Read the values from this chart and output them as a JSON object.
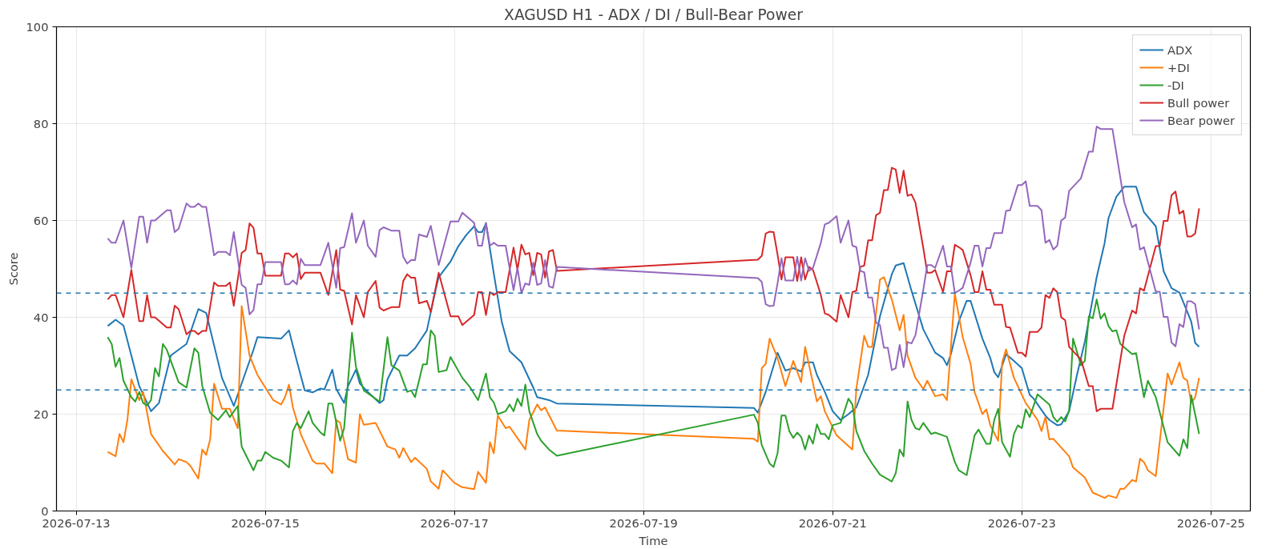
{
  "chart_data": {
    "type": "line",
    "title": "XAGUSD H1 - ADX / DI / Bull-Bear Power",
    "xlabel": "Time",
    "ylabel": "Score",
    "xlim": [
      "2026-07-12T19:00",
      "2026-07-25T10:00"
    ],
    "xticks": [
      "2026-07-13",
      "2026-07-15",
      "2026-07-17",
      "2026-07-19",
      "2026-07-21",
      "2026-07-23",
      "2026-07-25"
    ],
    "ylim": [
      0,
      100
    ],
    "yticks": [
      0,
      20,
      40,
      60,
      80,
      100
    ],
    "grid": true,
    "legend": "top right",
    "line_style": "solid",
    "ref_lines": [
      {
        "axis": "y",
        "value": 45,
        "color": "#1f77b4",
        "line_style": "dashed"
      },
      {
        "axis": "y",
        "value": 25,
        "color": "#1f77b4",
        "line_style": "dashed"
      }
    ],
    "x": [
      "2026-07-13T08:00",
      "2026-07-13T09:00",
      "2026-07-13T10:00",
      "2026-07-13T12:00",
      "2026-07-13T14:00",
      "2026-07-13T16:00",
      "2026-07-13T17:00",
      "2026-07-13T18:00",
      "2026-07-13T19:00",
      "2026-07-13T20:00",
      "2026-07-13T23:00",
      "2026-07-14T00:00",
      "2026-07-14T01:00",
      "2026-07-14T02:00",
      "2026-07-14T04:00",
      "2026-07-14T05:00",
      "2026-07-14T06:00",
      "2026-07-14T07:00",
      "2026-07-14T08:00",
      "2026-07-14T09:00",
      "2026-07-14T11:00",
      "2026-07-14T12:00",
      "2026-07-14T14:00",
      "2026-07-14T15:00",
      "2026-07-14T16:00",
      "2026-07-14T18:00",
      "2026-07-14T19:00",
      "2026-07-14T20:00",
      "2026-07-14T21:00",
      "2026-07-14T22:00",
      "2026-07-14T23:00",
      "2026-07-15T00:00",
      "2026-07-15T04:00",
      "2026-07-15T05:00",
      "2026-07-15T06:00",
      "2026-07-15T07:00",
      "2026-07-15T08:00",
      "2026-07-15T09:00",
      "2026-07-15T10:00",
      "2026-07-15T14:00",
      "2026-07-15T16:00",
      "2026-07-15T18:00",
      "2026-07-15T19:00",
      "2026-07-15T20:00",
      "2026-07-15T22:00",
      "2026-07-15T23:00",
      "2026-07-16T01:00",
      "2026-07-16T02:00",
      "2026-07-16T04:00",
      "2026-07-16T05:00",
      "2026-07-16T06:00",
      "2026-07-16T08:00",
      "2026-07-16T10:00",
      "2026-07-16T11:00",
      "2026-07-16T12:00",
      "2026-07-16T13:00",
      "2026-07-16T14:00",
      "2026-07-16T15:00",
      "2026-07-16T17:00",
      "2026-07-16T18:00",
      "2026-07-16T20:00",
      "2026-07-16T23:00",
      "2026-07-17T01:00",
      "2026-07-17T02:00",
      "2026-07-17T05:00",
      "2026-07-17T06:00",
      "2026-07-17T07:00",
      "2026-07-17T08:00",
      "2026-07-17T09:00",
      "2026-07-17T10:00",
      "2026-07-17T11:00",
      "2026-07-17T13:00",
      "2026-07-17T15:00",
      "2026-07-17T16:00",
      "2026-07-17T17:00",
      "2026-07-17T18:00",
      "2026-07-17T19:00",
      "2026-07-17T20:00",
      "2026-07-17T21:00",
      "2026-07-17T22:00",
      "2026-07-17T23:00",
      "2026-07-18T00:00",
      "2026-07-18T01:00",
      "2026-07-18T02:00",
      "2026-07-20T05:00",
      "2026-07-20T06:00",
      "2026-07-20T07:00",
      "2026-07-20T08:00",
      "2026-07-20T09:00",
      "2026-07-20T10:00",
      "2026-07-20T11:00",
      "2026-07-20T12:00",
      "2026-07-20T14:00",
      "2026-07-20T15:00",
      "2026-07-20T16:00",
      "2026-07-20T17:00",
      "2026-07-20T18:00",
      "2026-07-20T19:00",
      "2026-07-20T21:00",
      "2026-07-20T22:00",
      "2026-07-20T23:00",
      "2026-07-21T01:00",
      "2026-07-21T02:00",
      "2026-07-21T04:00",
      "2026-07-21T05:00",
      "2026-07-21T06:00",
      "2026-07-21T07:00",
      "2026-07-21T08:00",
      "2026-07-21T09:00",
      "2026-07-21T10:00",
      "2026-07-21T11:00",
      "2026-07-21T12:00",
      "2026-07-21T13:00",
      "2026-07-21T14:00",
      "2026-07-21T15:00",
      "2026-07-21T16:00",
      "2026-07-21T17:00",
      "2026-07-21T18:00",
      "2026-07-21T19:00",
      "2026-07-21T20:00",
      "2026-07-21T21:00",
      "2026-07-21T23:00",
      "2026-07-22T00:00",
      "2026-07-22T01:00",
      "2026-07-22T02:00",
      "2026-07-22T04:00",
      "2026-07-22T05:00",
      "2026-07-22T06:00",
      "2026-07-22T07:00",
      "2026-07-22T08:00",
      "2026-07-22T09:00",
      "2026-07-22T11:00",
      "2026-07-22T12:00",
      "2026-07-22T13:00",
      "2026-07-22T14:00",
      "2026-07-22T15:00",
      "2026-07-22T16:00",
      "2026-07-22T17:00",
      "2026-07-22T19:00",
      "2026-07-22T20:00",
      "2026-07-22T21:00",
      "2026-07-22T23:00",
      "2026-07-23T00:00",
      "2026-07-23T01:00",
      "2026-07-23T02:00",
      "2026-07-23T04:00",
      "2026-07-23T05:00",
      "2026-07-23T06:00",
      "2026-07-23T07:00",
      "2026-07-23T08:00",
      "2026-07-23T09:00",
      "2026-07-23T10:00",
      "2026-07-23T11:00",
      "2026-07-23T12:00",
      "2026-07-23T15:00",
      "2026-07-23T17:00",
      "2026-07-23T18:00",
      "2026-07-23T19:00",
      "2026-07-23T20:00",
      "2026-07-23T23:00",
      "2026-07-24T02:00",
      "2026-07-24T04:00",
      "2026-07-24T05:00",
      "2026-07-24T06:00",
      "2026-07-24T07:00",
      "2026-07-24T10:00",
      "2026-07-24T11:00",
      "2026-07-24T12:00",
      "2026-07-24T13:00",
      "2026-07-24T14:00",
      "2026-07-24T15:00",
      "2026-07-24T16:00",
      "2026-07-24T17:00",
      "2026-07-24T18:00",
      "2026-07-24T19:00",
      "2026-07-24T20:00",
      "2026-07-24T21:00"
    ],
    "series": [
      {
        "name": "ADX",
        "color": "#1f77b4",
        "x": [
          "2026-07-13T08:00",
          "2026-07-13T10:00",
          "2026-07-13T12:00",
          "2026-07-13T14:00",
          "2026-07-13T16:00",
          "2026-07-13T19:00",
          "2026-07-13T21:00",
          "2026-07-14T00:00",
          "2026-07-14T04:00",
          "2026-07-14T07:00",
          "2026-07-14T09:00",
          "2026-07-14T13:00",
          "2026-07-14T16:00",
          "2026-07-14T21:00",
          "2026-07-14T22:00",
          "2026-07-15T04:00",
          "2026-07-15T06:00",
          "2026-07-15T08:00",
          "2026-07-15T10:00",
          "2026-07-15T12:00",
          "2026-07-15T14:00",
          "2026-07-15T15:00",
          "2026-07-15T17:00",
          "2026-07-15T18:00",
          "2026-07-15T20:00",
          "2026-07-15T21:00",
          "2026-07-15T23:00",
          "2026-07-16T00:00",
          "2026-07-16T02:00",
          "2026-07-16T05:00",
          "2026-07-16T06:00",
          "2026-07-16T07:00",
          "2026-07-16T10:00",
          "2026-07-16T12:00",
          "2026-07-16T14:00",
          "2026-07-16T17:00",
          "2026-07-16T19:00",
          "2026-07-16T20:00",
          "2026-07-16T23:00",
          "2026-07-17T01:00",
          "2026-07-17T03:00",
          "2026-07-17T05:00",
          "2026-07-17T06:00",
          "2026-07-17T07:00",
          "2026-07-17T08:00",
          "2026-07-17T10:00",
          "2026-07-17T12:00",
          "2026-07-17T14:00",
          "2026-07-17T17:00",
          "2026-07-17T20:00",
          "2026-07-17T21:00",
          "2026-07-18T00:00",
          "2026-07-18T02:00",
          "2026-07-20T04:00",
          "2026-07-20T05:00",
          "2026-07-20T07:00",
          "2026-07-20T10:00",
          "2026-07-20T12:00",
          "2026-07-20T14:00",
          "2026-07-20T16:00",
          "2026-07-20T17:00",
          "2026-07-20T19:00",
          "2026-07-20T20:00",
          "2026-07-20T22:00",
          "2026-07-21T00:00",
          "2026-07-21T02:00",
          "2026-07-21T04:00",
          "2026-07-21T06:00",
          "2026-07-21T09:00",
          "2026-07-21T12:00",
          "2026-07-21T15:00",
          "2026-07-21T16:00",
          "2026-07-21T18:00",
          "2026-07-21T20:00",
          "2026-07-21T23:00",
          "2026-07-22T02:00",
          "2026-07-22T04:00",
          "2026-07-22T05:00",
          "2026-07-22T06:00",
          "2026-07-22T08:00",
          "2026-07-22T10:00",
          "2026-07-22T11:00",
          "2026-07-22T14:00",
          "2026-07-22T16:00",
          "2026-07-22T17:00",
          "2026-07-22T18:00",
          "2026-07-22T20:00",
          "2026-07-22T22:00",
          "2026-07-23T00:00",
          "2026-07-23T02:00",
          "2026-07-23T03:00",
          "2026-07-23T06:00",
          "2026-07-23T07:00",
          "2026-07-23T09:00",
          "2026-07-23T10:00",
          "2026-07-23T12:00",
          "2026-07-23T14:00",
          "2026-07-23T16:00",
          "2026-07-23T19:00",
          "2026-07-23T21:00",
          "2026-07-23T22:00",
          "2026-07-24T00:00",
          "2026-07-24T02:00",
          "2026-07-24T05:00",
          "2026-07-24T07:00",
          "2026-07-24T10:00",
          "2026-07-24T12:00",
          "2026-07-24T14:00",
          "2026-07-24T16:00",
          "2026-07-24T17:00",
          "2026-07-24T19:00",
          "2026-07-24T20:00",
          "2026-07-24T21:00"
        ],
        "values": [
          38.2,
          39.5,
          38.3,
          32.1,
          25.8,
          20.6,
          22.3,
          32.1,
          34.5,
          41.7,
          40.9,
          27.5,
          21.7,
          33.3,
          35.9,
          35.6,
          37.3,
          31,
          24.9,
          24.5,
          25.3,
          25.1,
          29.2,
          25.2,
          22.3,
          25.8,
          29.2,
          26.3,
          24.6,
          22.3,
          22.9,
          27.2,
          32.1,
          32.1,
          33.6,
          37.3,
          44.9,
          48.3,
          51.5,
          54.7,
          57,
          58.8,
          57.6,
          57.6,
          59.4,
          49,
          39.1,
          33,
          30.7,
          25.5,
          23.5,
          22.9,
          22.2,
          21.3,
          20.3,
          24.6,
          32.7,
          29,
          29.5,
          28.8,
          30.7,
          30.7,
          28.1,
          24.6,
          20.6,
          18.8,
          20,
          21.4,
          28.1,
          40.2,
          48.9,
          50.7,
          51.2,
          45.5,
          37.5,
          32.7,
          31.6,
          30.1,
          32.4,
          39.1,
          43.4,
          43.4,
          35.6,
          31.6,
          28.7,
          27.6,
          32.4,
          31,
          29.5,
          24,
          23.2,
          19.7,
          18.8,
          17.7,
          17.9,
          20.6,
          28.1,
          35,
          48.3,
          55.3,
          60.5,
          64.9,
          67,
          67,
          61.7,
          58.8,
          49.5,
          46,
          45.1,
          43.1,
          39.1,
          34.7,
          33.9
        ]
      },
      {
        "name": "+DI",
        "color": "#ff7f0e",
        "x": [
          "2026-07-13T08:00",
          "2026-07-13T10:00",
          "2026-07-13T11:00",
          "2026-07-13T12:00",
          "2026-07-13T13:00",
          "2026-07-13T14:00",
          "2026-07-13T16:00",
          "2026-07-13T17:00",
          "2026-07-13T19:00",
          "2026-07-13T22:00",
          "2026-07-14T01:00",
          "2026-07-14T02:00",
          "2026-07-14T04:00",
          "2026-07-14T05:00",
          "2026-07-14T07:00",
          "2026-07-14T08:00",
          "2026-07-14T09:00",
          "2026-07-14T10:00",
          "2026-07-14T11:00",
          "2026-07-14T13:00",
          "2026-07-14T15:00",
          "2026-07-14T17:00",
          "2026-07-14T18:00",
          "2026-07-14T20:00",
          "2026-07-14T22:00",
          "2026-07-15T02:00",
          "2026-07-15T04:00",
          "2026-07-15T05:00",
          "2026-07-15T06:00",
          "2026-07-15T07:00",
          "2026-07-15T09:00",
          "2026-07-15T12:00",
          "2026-07-15T13:00",
          "2026-07-15T15:00",
          "2026-07-15T17:00",
          "2026-07-15T18:00",
          "2026-07-15T19:00",
          "2026-07-15T21:00",
          "2026-07-15T23:00",
          "2026-07-16T00:00",
          "2026-07-16T01:00",
          "2026-07-16T04:00",
          "2026-07-16T07:00",
          "2026-07-16T09:00",
          "2026-07-16T10:00",
          "2026-07-16T11:00",
          "2026-07-16T13:00",
          "2026-07-16T14:00",
          "2026-07-16T17:00",
          "2026-07-16T18:00",
          "2026-07-16T20:00",
          "2026-07-16T21:00",
          "2026-07-17T00:00",
          "2026-07-17T02:00",
          "2026-07-17T05:00",
          "2026-07-17T06:00",
          "2026-07-17T08:00",
          "2026-07-17T09:00",
          "2026-07-17T10:00",
          "2026-07-17T11:00",
          "2026-07-17T13:00",
          "2026-07-17T14:00",
          "2026-07-17T18:00",
          "2026-07-17T19:00",
          "2026-07-17T21:00",
          "2026-07-17T22:00",
          "2026-07-17T23:00",
          "2026-07-18T02:00",
          "2026-07-20T04:00",
          "2026-07-20T05:00",
          "2026-07-20T06:00",
          "2026-07-20T07:00",
          "2026-07-20T08:00",
          "2026-07-20T10:00",
          "2026-07-20T12:00",
          "2026-07-20T14:00",
          "2026-07-20T16:00",
          "2026-07-20T17:00",
          "2026-07-20T20:00",
          "2026-07-20T21:00",
          "2026-07-20T22:00",
          "2026-07-21T01:00",
          "2026-07-21T05:00",
          "2026-07-21T06:00",
          "2026-07-21T08:00",
          "2026-07-21T09:00",
          "2026-07-21T10:00",
          "2026-07-21T12:00",
          "2026-07-21T13:00",
          "2026-07-21T15:00",
          "2026-07-21T17:00",
          "2026-07-21T18:00",
          "2026-07-21T19:00",
          "2026-07-21T21:00",
          "2026-07-21T23:00",
          "2026-07-22T00:00",
          "2026-07-22T02:00",
          "2026-07-22T04:00",
          "2026-07-22T05:00",
          "2026-07-22T07:00",
          "2026-07-22T09:00",
          "2026-07-22T11:00",
          "2026-07-22T12:00",
          "2026-07-22T14:00",
          "2026-07-22T15:00",
          "2026-07-22T16:00",
          "2026-07-22T18:00",
          "2026-07-22T19:00",
          "2026-07-22T20:00",
          "2026-07-22T22:00",
          "2026-07-23T01:00",
          "2026-07-23T04:00",
          "2026-07-23T05:00",
          "2026-07-23T06:00",
          "2026-07-23T07:00",
          "2026-07-23T08:00",
          "2026-07-23T12:00",
          "2026-07-23T13:00",
          "2026-07-23T16:00",
          "2026-07-23T18:00",
          "2026-07-23T21:00",
          "2026-07-23T22:00",
          "2026-07-24T00:00",
          "2026-07-24T01:00",
          "2026-07-24T02:00",
          "2026-07-24T04:00",
          "2026-07-24T05:00",
          "2026-07-24T06:00",
          "2026-07-24T07:00",
          "2026-07-24T08:00",
          "2026-07-24T10:00",
          "2026-07-24T13:00",
          "2026-07-24T14:00",
          "2026-07-24T16:00",
          "2026-07-24T17:00",
          "2026-07-24T18:00",
          "2026-07-24T19:00",
          "2026-07-24T20:00",
          "2026-07-24T21:00"
        ],
        "values": [
          12.2,
          11.3,
          15.9,
          14.2,
          18.8,
          27.2,
          22.9,
          24.6,
          15.9,
          12.4,
          9.6,
          10.7,
          10.1,
          9.3,
          6.7,
          12.7,
          11.6,
          14.8,
          26.3,
          21.1,
          21.1,
          17.1,
          42.3,
          32.1,
          28.1,
          22.9,
          22,
          23.5,
          26.1,
          21.4,
          15.9,
          10.4,
          9.8,
          9.8,
          7.8,
          18.8,
          18.2,
          10.7,
          10,
          20,
          17.8,
          18.2,
          13.3,
          12.7,
          11,
          13,
          10.1,
          11,
          8.7,
          6.1,
          4.6,
          8.4,
          5.8,
          4.9,
          4.5,
          8.1,
          5.8,
          14.2,
          11.9,
          19.7,
          17.1,
          17.4,
          12.7,
          18.8,
          22,
          20.8,
          21.4,
          16.6,
          14.9,
          14.3,
          29.5,
          30.4,
          35.6,
          31.6,
          25.8,
          31,
          26.6,
          33.9,
          22.6,
          23.7,
          20.6,
          15.6,
          12.7,
          25.2,
          36.2,
          33.9,
          33.9,
          47.8,
          48.3,
          43.7,
          37.3,
          40.5,
          32.1,
          27.5,
          25.2,
          26.9,
          23.7,
          24.1,
          22.9,
          44.9,
          35.9,
          30.4,
          24.6,
          20,
          21,
          17.7,
          14.5,
          30.7,
          33.4,
          27.5,
          22.3,
          18.8,
          16.5,
          19.4,
          14.8,
          14.9,
          11.3,
          9,
          6.9,
          3.8,
          2.7,
          3.2,
          2.7,
          4.6,
          4.6,
          6.4,
          6.1,
          10.8,
          10.1,
          8.4,
          7.2,
          28.4,
          26.1,
          30.7,
          27.5,
          26.9,
          22.3,
          23.5,
          27.5
        ]
      },
      {
        "name": "-DI",
        "color": "#2ca02c",
        "x": [
          "2026-07-13T08:00",
          "2026-07-13T09:00",
          "2026-07-13T10:00",
          "2026-07-13T11:00",
          "2026-07-13T12:00",
          "2026-07-13T14:00",
          "2026-07-13T15:00",
          "2026-07-13T16:00",
          "2026-07-13T17:00",
          "2026-07-13T18:00",
          "2026-07-13T19:00",
          "2026-07-13T20:00",
          "2026-07-13T21:00",
          "2026-07-13T22:00",
          "2026-07-13T23:00",
          "2026-07-14T02:00",
          "2026-07-14T04:00",
          "2026-07-14T06:00",
          "2026-07-14T07:00",
          "2026-07-14T08:00",
          "2026-07-14T10:00",
          "2026-07-14T12:00",
          "2026-07-14T14:00",
          "2026-07-14T15:00",
          "2026-07-14T17:00",
          "2026-07-14T18:00",
          "2026-07-14T21:00",
          "2026-07-14T22:00",
          "2026-07-14T23:00",
          "2026-07-15T00:00",
          "2026-07-15T02:00",
          "2026-07-15T04:00",
          "2026-07-15T06:00",
          "2026-07-15T07:00",
          "2026-07-15T08:00",
          "2026-07-15T09:00",
          "2026-07-15T11:00",
          "2026-07-15T12:00",
          "2026-07-15T14:00",
          "2026-07-15T15:00",
          "2026-07-15T16:00",
          "2026-07-15T17:00",
          "2026-07-15T19:00",
          "2026-07-15T20:00",
          "2026-07-15T22:00",
          "2026-07-15T23:00",
          "2026-07-16T01:00",
          "2026-07-16T05:00",
          "2026-07-16T07:00",
          "2026-07-16T08:00",
          "2026-07-16T10:00",
          "2026-07-16T12:00",
          "2026-07-16T13:00",
          "2026-07-16T14:00",
          "2026-07-16T16:00",
          "2026-07-16T17:00",
          "2026-07-16T18:00",
          "2026-07-16T19:00",
          "2026-07-16T20:00",
          "2026-07-16T22:00",
          "2026-07-16T23:00",
          "2026-07-17T02:00",
          "2026-07-17T04:00",
          "2026-07-17T06:00",
          "2026-07-17T08:00",
          "2026-07-17T09:00",
          "2026-07-17T10:00",
          "2026-07-17T11:00",
          "2026-07-17T13:00",
          "2026-07-17T14:00",
          "2026-07-17T15:00",
          "2026-07-17T16:00",
          "2026-07-17T17:00",
          "2026-07-17T18:00",
          "2026-07-17T19:00",
          "2026-07-17T21:00",
          "2026-07-17T22:00",
          "2026-07-18T00:00",
          "2026-07-18T02:00",
          "2026-07-20T04:00",
          "2026-07-20T05:00",
          "2026-07-20T06:00",
          "2026-07-20T08:00",
          "2026-07-20T09:00",
          "2026-07-20T10:00",
          "2026-07-20T11:00",
          "2026-07-20T12:00",
          "2026-07-20T13:00",
          "2026-07-20T14:00",
          "2026-07-20T15:00",
          "2026-07-20T16:00",
          "2026-07-20T17:00",
          "2026-07-20T18:00",
          "2026-07-20T19:00",
          "2026-07-20T20:00",
          "2026-07-20T21:00",
          "2026-07-20T22:00",
          "2026-07-20T23:00",
          "2026-07-21T00:00",
          "2026-07-21T02:00",
          "2026-07-21T04:00",
          "2026-07-21T05:00",
          "2026-07-21T06:00",
          "2026-07-21T08:00",
          "2026-07-21T10:00",
          "2026-07-21T12:00",
          "2026-07-21T15:00",
          "2026-07-21T16:00",
          "2026-07-21T17:00",
          "2026-07-21T18:00",
          "2026-07-21T19:00",
          "2026-07-21T20:00",
          "2026-07-21T21:00",
          "2026-07-21T22:00",
          "2026-07-21T23:00",
          "2026-07-22T01:00",
          "2026-07-22T02:00",
          "2026-07-22T04:00",
          "2026-07-22T05:00",
          "2026-07-22T07:00",
          "2026-07-22T08:00",
          "2026-07-22T10:00",
          "2026-07-22T12:00",
          "2026-07-22T13:00",
          "2026-07-22T15:00",
          "2026-07-22T16:00",
          "2026-07-22T17:00",
          "2026-07-22T18:00",
          "2026-07-22T19:00",
          "2026-07-22T21:00",
          "2026-07-22T22:00",
          "2026-07-22T23:00",
          "2026-07-23T00:00",
          "2026-07-23T01:00",
          "2026-07-23T02:00",
          "2026-07-23T04:00",
          "2026-07-23T07:00",
          "2026-07-23T08:00",
          "2026-07-23T09:00",
          "2026-07-23T10:00",
          "2026-07-23T11:00",
          "2026-07-23T12:00",
          "2026-07-23T13:00",
          "2026-07-23T15:00",
          "2026-07-23T16:00",
          "2026-07-23T17:00",
          "2026-07-23T18:00",
          "2026-07-23T19:00",
          "2026-07-23T20:00",
          "2026-07-23T21:00",
          "2026-07-23T22:00",
          "2026-07-23T23:00",
          "2026-07-24T00:00",
          "2026-07-24T01:00",
          "2026-07-24T04:00",
          "2026-07-24T05:00",
          "2026-07-24T07:00",
          "2026-07-24T08:00",
          "2026-07-24T10:00",
          "2026-07-24T13:00",
          "2026-07-24T16:00",
          "2026-07-24T17:00",
          "2026-07-24T18:00",
          "2026-07-24T19:00",
          "2026-07-24T21:00"
        ],
        "values": [
          35.9,
          34.5,
          29.8,
          31.6,
          26.9,
          23.5,
          22.6,
          24.6,
          22.3,
          21.8,
          22.9,
          29.5,
          27.8,
          34.5,
          33.3,
          26.6,
          25.5,
          33.6,
          32.7,
          25.8,
          20.3,
          18.8,
          20.8,
          19.4,
          21.7,
          13.3,
          8.4,
          10.4,
          10.4,
          12.2,
          11,
          10.4,
          9,
          16.5,
          18.2,
          17.1,
          20.6,
          18.2,
          16.2,
          15.6,
          22.2,
          22.2,
          14.5,
          17.1,
          36.8,
          29.8,
          24.9,
          22.6,
          35.9,
          30.1,
          29,
          24.6,
          24.9,
          23.5,
          30.3,
          30.3,
          37.3,
          36.2,
          28.7,
          29.1,
          31.8,
          27.5,
          25.5,
          22.9,
          28.4,
          23.5,
          22.4,
          20,
          20.6,
          22,
          20.6,
          23.2,
          21.7,
          26.1,
          20.6,
          15.9,
          14.5,
          12.7,
          11.4,
          19.9,
          18.2,
          13.6,
          9.8,
          9.1,
          11.9,
          19.7,
          19.7,
          16.5,
          15.1,
          16.2,
          15.3,
          12.7,
          15.6,
          13.9,
          17.9,
          15.9,
          15.9,
          14.8,
          17.7,
          18.2,
          23.2,
          22,
          16.5,
          12.4,
          9.8,
          7.5,
          6.1,
          7.8,
          12.7,
          11.3,
          22.6,
          18.8,
          17.1,
          16.8,
          18.2,
          15.9,
          16.2,
          15.6,
          15.3,
          10.1,
          8.4,
          7.4,
          15.6,
          16.8,
          13.9,
          13.9,
          18.8,
          21.1,
          14.2,
          11.2,
          15.9,
          17.7,
          17.1,
          21,
          19.4,
          24.1,
          22,
          19.4,
          18.4,
          19.4,
          18.5,
          20.7,
          35.6,
          30.1,
          31,
          40.2,
          39.8,
          43.7,
          39.7,
          40.8,
          38.2,
          37.1,
          37.3,
          34.5,
          32.4,
          32.6,
          23.5,
          26.9,
          23.5,
          14.2,
          11.4,
          14.8,
          13,
          23.9,
          15.9
        ]
      },
      {
        "name": "Bull power",
        "color": "#d62728",
        "values": [
          43.7,
          44.6,
          44.6,
          40,
          49.8,
          39.2,
          39.2,
          44.6,
          40,
          40,
          37.9,
          37.9,
          42.4,
          41.7,
          36.5,
          37.2,
          37.2,
          36.5,
          37.2,
          37.2,
          47.2,
          46.5,
          46.5,
          47.2,
          42.4,
          53.3,
          53.9,
          59.4,
          58.5,
          53.2,
          53.2,
          48.6,
          48.6,
          53.2,
          53.2,
          52.4,
          53.2,
          47.9,
          49.2,
          49.2,
          44.6,
          53.9,
          45.7,
          45.5,
          38.5,
          44.6,
          40,
          45.2,
          47.5,
          42,
          41.4,
          42.1,
          42.1,
          47.5,
          48.9,
          48.2,
          48.2,
          42.9,
          43.4,
          41.1,
          49.2,
          40.2,
          40.2,
          38.4,
          40.5,
          45.2,
          45.2,
          40.5,
          45.2,
          44.6,
          45.2,
          45.2,
          54.4,
          49.8,
          55,
          53,
          53.3,
          48.7,
          53.3,
          53,
          48.2,
          53.6,
          53.9,
          49.6,
          51.9,
          52.7,
          57.3,
          57.7,
          57.6,
          53,
          47.8,
          52.4,
          52.4,
          47.5,
          52.4,
          47.8,
          50.4,
          49.8,
          44.6,
          40.8,
          40.5,
          39.1,
          44.6,
          40,
          45.2,
          45.5,
          50.4,
          50.7,
          55.9,
          55.9,
          61.1,
          61.6,
          66.3,
          66.3,
          70.9,
          70.5,
          65.7,
          70.3,
          65.1,
          65.4,
          63.7,
          54.3,
          49.2,
          49.2,
          49.8,
          45.2,
          49.5,
          49.5,
          55,
          54.5,
          53.9,
          48.7,
          45.2,
          45.2,
          49.5,
          45.7,
          45.7,
          42.6,
          42.6,
          38,
          37.9,
          32.7,
          32.7,
          31.9,
          37,
          37,
          37.9,
          44.6,
          44,
          46,
          45.2,
          40,
          39.4,
          33.9,
          31.3,
          25.8,
          25.8,
          20.6,
          21.1,
          21.1,
          36.2,
          41.4,
          40.8,
          46,
          45.5,
          54.7,
          54.7,
          59.9,
          59.9,
          65.2,
          66,
          61.4,
          62,
          56.7,
          56.7,
          57.3,
          62.5
        ]
      },
      {
        "name": "Bear power",
        "color": "#9467bd",
        "values": [
          56.3,
          55.4,
          55.4,
          60,
          50.2,
          60.8,
          60.8,
          55.4,
          60,
          60,
          62.1,
          62.1,
          57.6,
          58.3,
          63.5,
          62.8,
          62.8,
          63.5,
          62.8,
          62.8,
          52.8,
          53.5,
          53.5,
          52.8,
          57.6,
          46.7,
          46.1,
          40.6,
          41.5,
          46.8,
          46.8,
          51.4,
          51.4,
          46.8,
          46.8,
          47.6,
          46.8,
          52.1,
          50.8,
          50.8,
          55.4,
          46.1,
          54.3,
          54.5,
          61.5,
          55.4,
          60,
          54.8,
          52.5,
          58,
          58.6,
          57.9,
          57.9,
          52.5,
          51.1,
          51.8,
          51.8,
          57.1,
          56.6,
          58.9,
          50.8,
          59.8,
          59.8,
          61.6,
          59.5,
          54.8,
          54.8,
          59.5,
          54.8,
          55.4,
          54.8,
          54.8,
          45.6,
          50.2,
          45,
          47,
          46.7,
          51.3,
          46.7,
          47,
          51.8,
          46.4,
          46.1,
          50.4,
          48.1,
          47.3,
          42.7,
          42.3,
          42.4,
          47,
          52.2,
          47.6,
          47.6,
          52.5,
          47.6,
          52.2,
          49.6,
          50.2,
          55.4,
          59.2,
          59.5,
          60.9,
          55.4,
          60,
          54.8,
          54.5,
          49.6,
          49.3,
          44.1,
          44.1,
          38.9,
          38.4,
          33.7,
          33.7,
          29.1,
          29.5,
          34.3,
          29.7,
          34.9,
          34.6,
          36.3,
          45.7,
          50.8,
          50.8,
          50.2,
          54.8,
          50.5,
          50.5,
          45,
          45.5,
          46.1,
          51.3,
          54.8,
          54.8,
          50.5,
          54.3,
          54.3,
          57.4,
          57.4,
          62,
          62.1,
          67.3,
          67.3,
          68.1,
          63,
          63,
          62.1,
          55.4,
          56,
          54,
          54.8,
          60,
          60.6,
          66.1,
          68.7,
          74.2,
          74.2,
          79.4,
          78.9,
          78.9,
          63.8,
          58.6,
          59.2,
          54,
          54.5,
          45.3,
          45.3,
          40.1,
          40.1,
          34.8,
          34,
          38.6,
          38,
          43.3,
          43.3,
          42.7,
          37.5
        ]
      }
    ]
  }
}
